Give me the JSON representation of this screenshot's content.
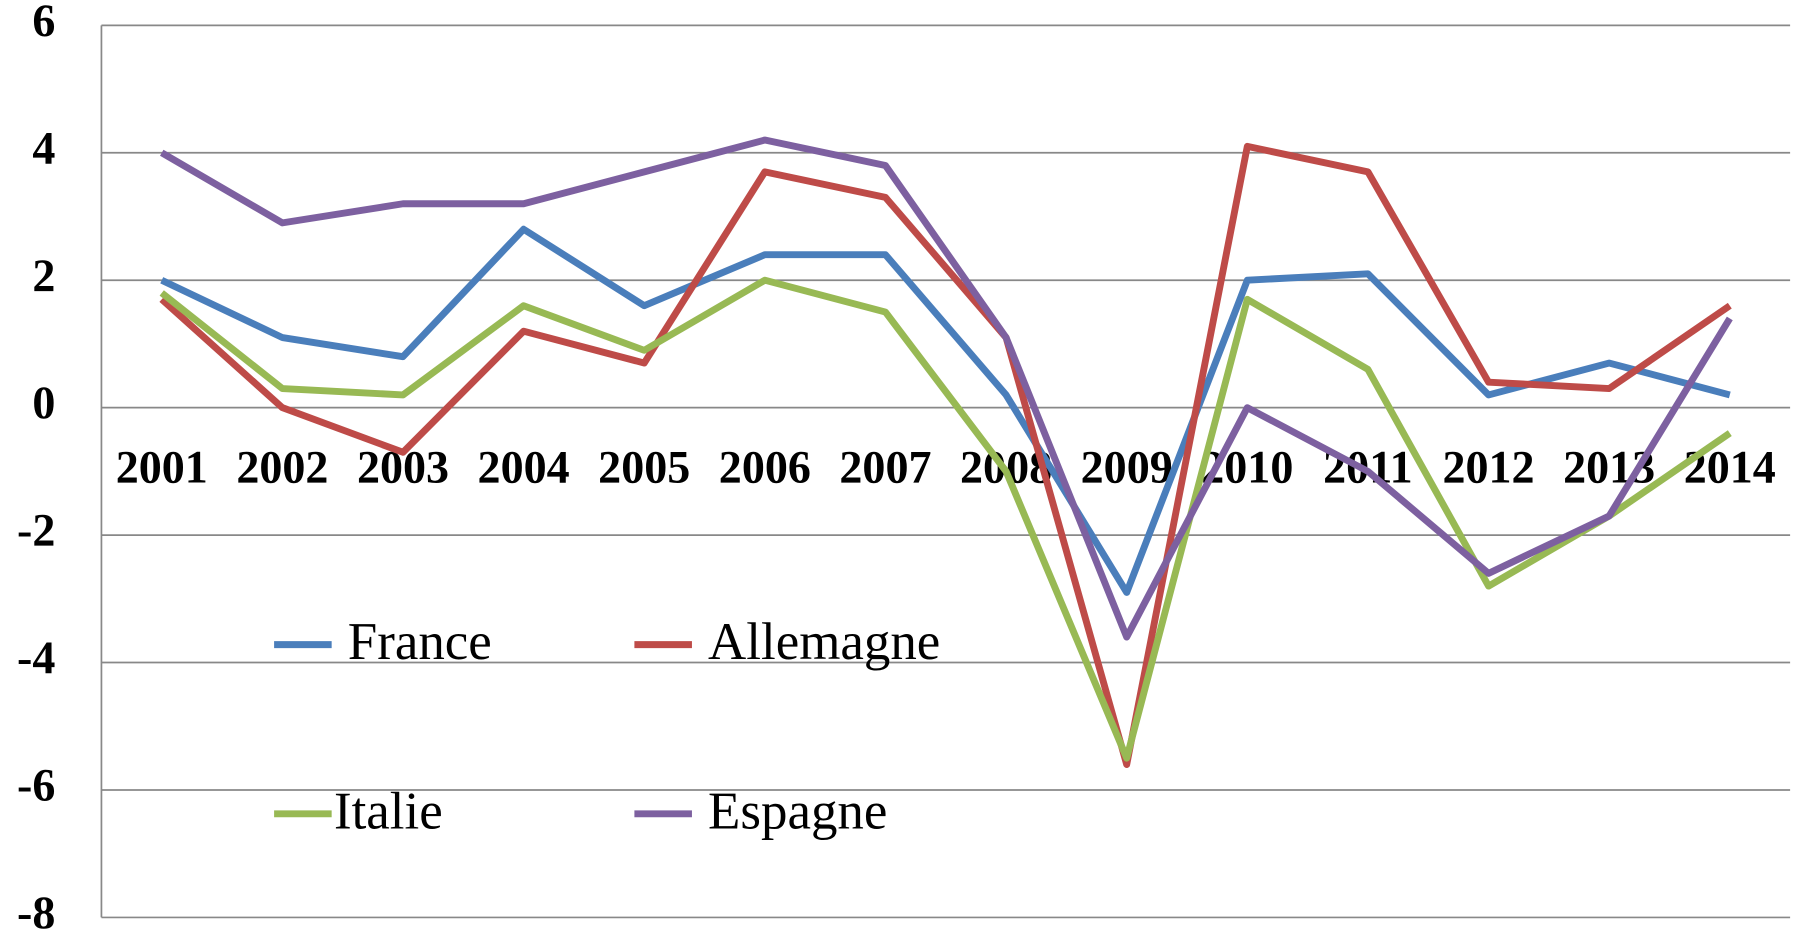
{
  "chart_data": {
    "type": "line",
    "categories": [
      "2001",
      "2002",
      "2003",
      "2004",
      "2005",
      "2006",
      "2007",
      "2008",
      "2009",
      "2010",
      "2011",
      "2012",
      "2013",
      "2014"
    ],
    "series": [
      {
        "name": "France",
        "color": "#4a7ebb",
        "values": [
          2.0,
          1.1,
          0.8,
          2.8,
          1.6,
          2.4,
          2.4,
          0.2,
          -2.9,
          2.0,
          2.1,
          0.2,
          0.7,
          0.2
        ]
      },
      {
        "name": "Allemagne",
        "color": "#be4b48",
        "values": [
          1.7,
          0.0,
          -0.7,
          1.2,
          0.7,
          3.7,
          3.3,
          1.1,
          -5.6,
          4.1,
          3.7,
          0.4,
          0.3,
          1.6
        ]
      },
      {
        "name": "Italie",
        "color": "#98b954",
        "values": [
          1.8,
          0.3,
          0.2,
          1.6,
          0.9,
          2.0,
          1.5,
          -1.0,
          -5.5,
          1.7,
          0.6,
          -2.8,
          -1.7,
          -0.4
        ]
      },
      {
        "name": "Espagne",
        "color": "#7d60a0",
        "values": [
          4.0,
          2.9,
          3.2,
          3.2,
          3.7,
          4.2,
          3.8,
          1.1,
          -3.6,
          0.0,
          -1.0,
          -2.6,
          -1.7,
          1.4
        ]
      }
    ],
    "ylim": [
      -8,
      6
    ],
    "yticks": [
      -8,
      -6,
      -4,
      -2,
      0,
      2,
      4,
      6
    ],
    "grid": true
  }
}
